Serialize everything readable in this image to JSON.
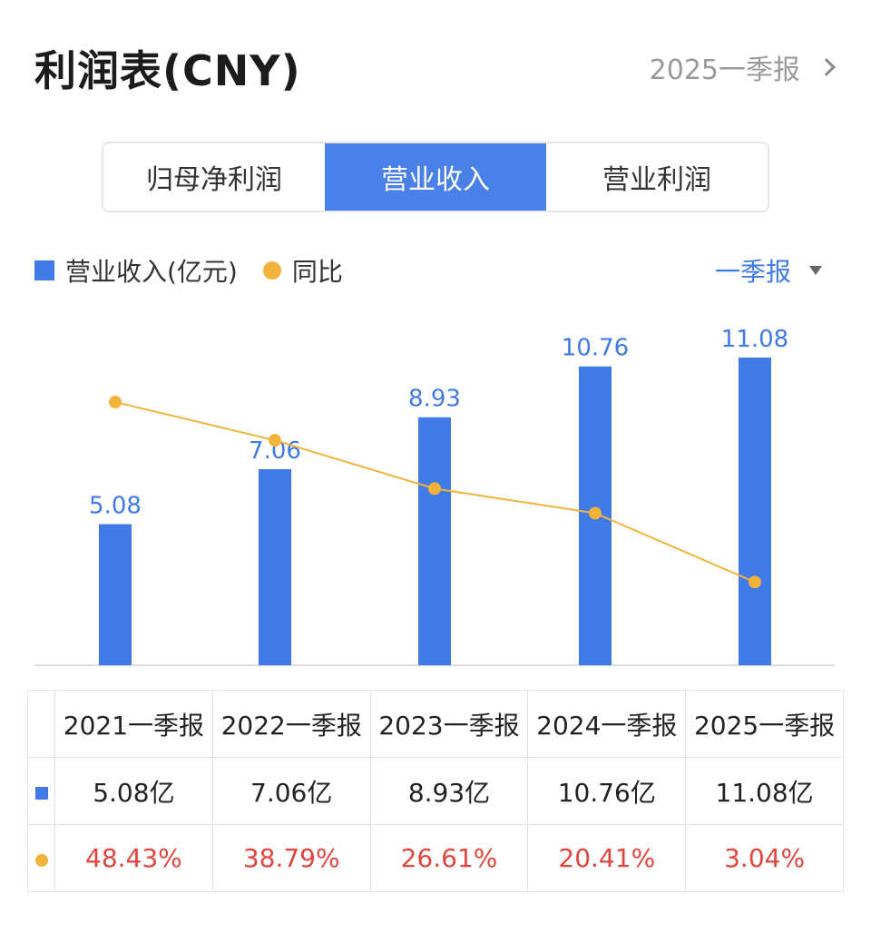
{
  "header": {
    "title": "利润表(CNY)",
    "period": "2025一季报"
  },
  "tabs": [
    {
      "label": "归母净利润",
      "active": false
    },
    {
      "label": "营业收入",
      "active": true
    },
    {
      "label": "营业利润",
      "active": false
    }
  ],
  "legend": {
    "bar_label": "营业收入(亿元)",
    "line_label": "同比"
  },
  "season_selector": "一季报",
  "colors": {
    "bar": "#3f7ae6",
    "line": "#f2b33d",
    "accent": "#4a81e8",
    "negative_text": "#e0463d"
  },
  "chart_data": {
    "type": "bar",
    "categories": [
      "2021一季报",
      "2022一季报",
      "2023一季报",
      "2024一季报",
      "2025一季报"
    ],
    "series": [
      {
        "name": "营业收入(亿元)",
        "type": "bar",
        "values": [
          5.08,
          7.06,
          8.93,
          10.76,
          11.08
        ],
        "labels": [
          "5.08",
          "7.06",
          "8.93",
          "10.76",
          "11.08"
        ]
      },
      {
        "name": "同比",
        "type": "line",
        "values": [
          48.43,
          38.79,
          26.61,
          20.41,
          3.04
        ]
      }
    ],
    "grid": false
  },
  "table": {
    "headers": [
      "2021一季报",
      "2022一季报",
      "2023一季报",
      "2024一季报",
      "2025一季报"
    ],
    "revenue": [
      "5.08亿",
      "7.06亿",
      "8.93亿",
      "10.76亿",
      "11.08亿"
    ],
    "yoy": [
      "48.43%",
      "38.79%",
      "26.61%",
      "20.41%",
      "3.04%"
    ]
  }
}
